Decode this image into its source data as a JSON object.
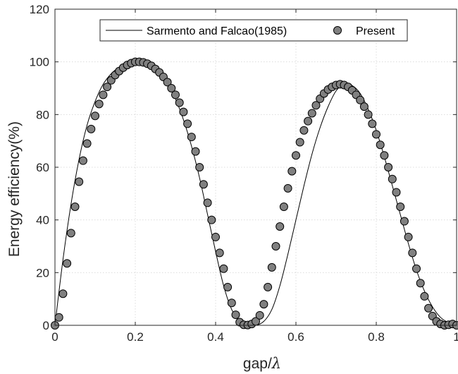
{
  "chart_data": {
    "type": "scatter",
    "title": "",
    "xlabel_main": "gap/",
    "xlabel_symbol": "λ",
    "ylabel": "Energy efficiency(%)",
    "xlim": [
      0,
      1
    ],
    "ylim": [
      0,
      120
    ],
    "xticks": [
      0,
      0.2,
      0.4,
      0.6,
      0.8,
      1
    ],
    "xtick_labels": [
      "0",
      "0.2",
      "0.4",
      "0.6",
      "0.8",
      "1"
    ],
    "yticks": [
      0,
      20,
      40,
      60,
      80,
      100,
      120
    ],
    "ytick_labels": [
      "0",
      "20",
      "40",
      "60",
      "80",
      "100",
      "120"
    ],
    "grid": true,
    "legend_position": "top-center",
    "series": [
      {
        "name": "Sarmento and Falcao(1985)",
        "style": "line",
        "color": "#000000",
        "x": [
          0,
          0.02,
          0.04,
          0.06,
          0.08,
          0.1,
          0.12,
          0.14,
          0.16,
          0.18,
          0.2,
          0.22,
          0.24,
          0.26,
          0.28,
          0.3,
          0.32,
          0.34,
          0.36,
          0.38,
          0.4,
          0.42,
          0.44,
          0.46,
          0.48,
          0.5,
          0.52,
          0.54,
          0.56,
          0.58,
          0.6,
          0.62,
          0.64,
          0.66,
          0.68,
          0.7,
          0.72,
          0.74,
          0.76,
          0.78,
          0.8,
          0.82,
          0.84,
          0.86,
          0.88,
          0.9,
          0.92,
          0.94,
          0.96,
          0.98,
          1.0
        ],
        "y": [
          0,
          25,
          46,
          63,
          76,
          85,
          91.5,
          95.5,
          98,
          99.5,
          100,
          99.8,
          98.5,
          96,
          92,
          86,
          78,
          68,
          56,
          42,
          28,
          15,
          6,
          1.5,
          0.2,
          0,
          1.5,
          6,
          15,
          27,
          40,
          53,
          65,
          75,
          83,
          89,
          91.5,
          91,
          88,
          82,
          74,
          64,
          53,
          42,
          31,
          21,
          13,
          7,
          3,
          1,
          0
        ]
      },
      {
        "name": "Present",
        "style": "marker",
        "color": "#808080",
        "x": [
          0,
          0.01,
          0.02,
          0.03,
          0.04,
          0.05,
          0.06,
          0.07,
          0.08,
          0.09,
          0.1,
          0.11,
          0.12,
          0.13,
          0.14,
          0.15,
          0.16,
          0.17,
          0.18,
          0.19,
          0.2,
          0.21,
          0.22,
          0.23,
          0.24,
          0.25,
          0.26,
          0.27,
          0.28,
          0.29,
          0.3,
          0.31,
          0.32,
          0.33,
          0.34,
          0.35,
          0.36,
          0.37,
          0.38,
          0.39,
          0.4,
          0.41,
          0.42,
          0.43,
          0.44,
          0.45,
          0.46,
          0.47,
          0.48,
          0.49,
          0.5,
          0.51,
          0.52,
          0.53,
          0.54,
          0.55,
          0.56,
          0.57,
          0.58,
          0.59,
          0.6,
          0.61,
          0.62,
          0.63,
          0.64,
          0.65,
          0.66,
          0.67,
          0.68,
          0.69,
          0.7,
          0.71,
          0.72,
          0.73,
          0.74,
          0.75,
          0.76,
          0.77,
          0.78,
          0.79,
          0.8,
          0.81,
          0.82,
          0.83,
          0.84,
          0.85,
          0.86,
          0.87,
          0.88,
          0.89,
          0.9,
          0.91,
          0.92,
          0.93,
          0.94,
          0.95,
          0.96,
          0.97,
          0.98,
          0.99,
          1.0
        ],
        "y": [
          0,
          3,
          12,
          23.5,
          35,
          45,
          54.5,
          62.5,
          69,
          74.5,
          79.5,
          84,
          87.5,
          90.5,
          93,
          95,
          96.5,
          97.8,
          98.8,
          99.5,
          100,
          100,
          99.8,
          99.3,
          98.5,
          97.3,
          96,
          94.3,
          92.3,
          90,
          87.5,
          84.5,
          81,
          76.5,
          71.5,
          66,
          60,
          53.5,
          46.5,
          40,
          33.5,
          27.5,
          21.5,
          14.5,
          8.5,
          4,
          1.2,
          0.2,
          0.1,
          0.5,
          1.5,
          3.8,
          8,
          14.5,
          22,
          30,
          37.5,
          45,
          52,
          58.5,
          64.5,
          69.5,
          74,
          77.5,
          80.5,
          83.5,
          86,
          88,
          89.5,
          90.5,
          91.2,
          91.5,
          91.2,
          90.5,
          89.2,
          87.5,
          85.5,
          83,
          80,
          76.5,
          72.5,
          68.5,
          64.5,
          60,
          55.5,
          50.5,
          45,
          39.5,
          33.5,
          27.5,
          21.5,
          16,
          11,
          6.5,
          3.5,
          1.5,
          0.5,
          0,
          0.2,
          0.5,
          0
        ]
      }
    ]
  }
}
